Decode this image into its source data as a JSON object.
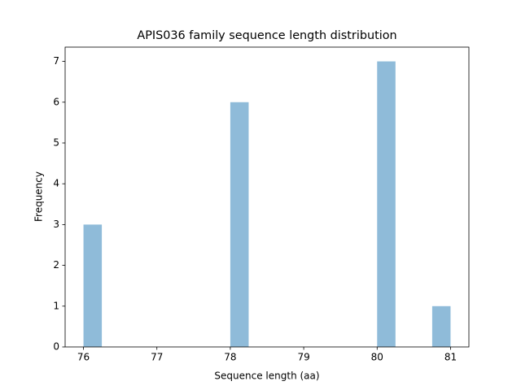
{
  "chart_data": {
    "type": "histogram",
    "title": "APIS036 family sequence length distribution",
    "xlabel": "Sequence length (aa)",
    "ylabel": "Frequency",
    "bins": [
      76,
      76.25,
      76.5,
      76.75,
      77,
      77.25,
      77.5,
      77.75,
      78,
      78.25,
      78.5,
      78.75,
      79,
      79.25,
      79.5,
      79.75,
      80,
      80.25,
      80.5,
      80.75,
      81
    ],
    "values": [
      3,
      0,
      0,
      0,
      0,
      0,
      0,
      0,
      6,
      0,
      0,
      0,
      0,
      0,
      0,
      0,
      7,
      0,
      0,
      1
    ],
    "color": "#8fbbd9",
    "xlim": [
      75.75,
      81.25
    ],
    "xticks": [
      76,
      77,
      78,
      79,
      80,
      81
    ],
    "ylim": [
      0,
      7.35
    ],
    "yticks": [
      0,
      1,
      2,
      3,
      4,
      5,
      6,
      7
    ]
  }
}
